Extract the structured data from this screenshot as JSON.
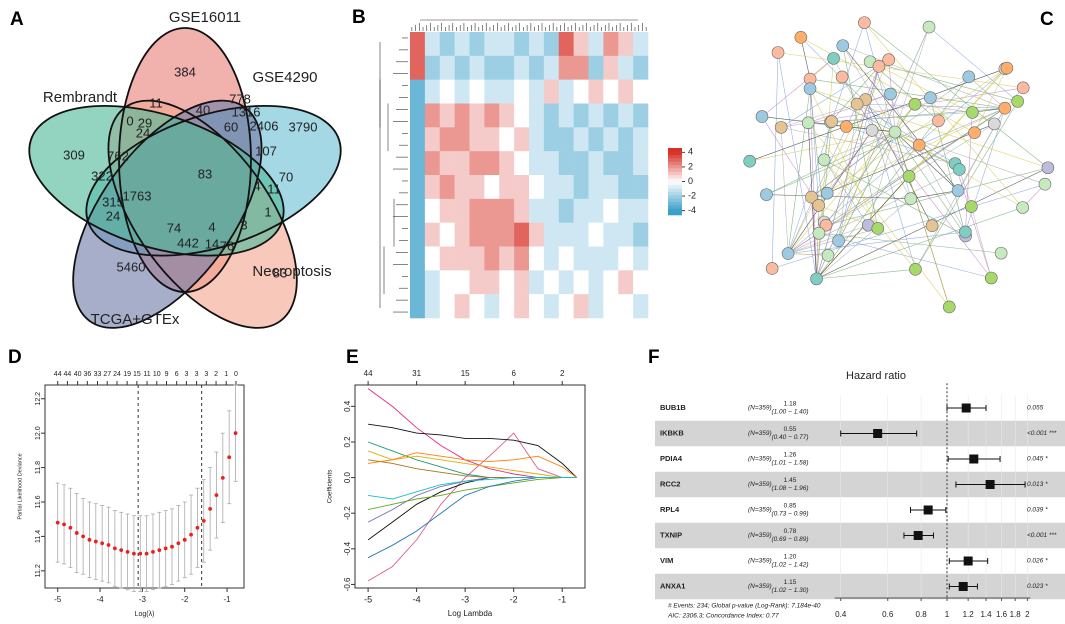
{
  "panel_labels": [
    "A",
    "B",
    "C",
    "D",
    "E",
    "F"
  ],
  "chart_data": [
    {
      "type": "venn",
      "sets": [
        {
          "name": "GSE16011",
          "color": "#e8837d"
        },
        {
          "name": "GSE4290",
          "color": "#6cc0d5"
        },
        {
          "name": "Necroptosis",
          "color": "#f3a690"
        },
        {
          "name": "TCGA+GTEx",
          "color": "#717ca9"
        },
        {
          "name": "Rembrandt",
          "color": "#4fb99a"
        }
      ],
      "values": [
        384,
        11,
        778,
        40,
        1316,
        29,
        0,
        24,
        60,
        2406,
        3790,
        309,
        762,
        107,
        322,
        83,
        70,
        1763,
        4,
        11,
        315,
        24,
        74,
        4,
        3,
        1,
        83,
        442,
        14,
        76,
        5460
      ]
    },
    {
      "type": "heatmap",
      "values": [
        [
          3,
          -1,
          -2,
          -1,
          -2,
          -1,
          -1,
          -2,
          -1,
          -2,
          3,
          1,
          -1,
          2,
          1,
          -1
        ],
        [
          3,
          -2,
          -1,
          -2,
          -1,
          -2,
          -2,
          -1,
          -2,
          -1,
          2,
          2,
          -2,
          1,
          -1,
          -2
        ],
        [
          -3,
          -1,
          0,
          -1,
          0,
          -1,
          -1,
          0,
          -1,
          1,
          -1,
          0,
          1,
          0,
          1,
          0
        ],
        [
          -3,
          2,
          1,
          2,
          1,
          2,
          1,
          0,
          -1,
          -2,
          -1,
          -2,
          -1,
          -2,
          -1,
          -2
        ],
        [
          -3,
          1,
          2,
          2,
          1,
          1,
          0,
          1,
          -1,
          -2,
          -2,
          -1,
          -2,
          -1,
          -2,
          -1
        ],
        [
          -3,
          2,
          1,
          1,
          2,
          2,
          1,
          0,
          -1,
          -1,
          -2,
          -2,
          -1,
          -2,
          -2,
          -1
        ],
        [
          -3,
          1,
          2,
          1,
          1,
          0,
          1,
          1,
          0,
          -1,
          -1,
          -2,
          -1,
          -1,
          -2,
          -2
        ],
        [
          -3,
          0,
          1,
          1,
          2,
          2,
          2,
          1,
          -1,
          -1,
          -2,
          -1,
          -1,
          0,
          -1,
          -1
        ],
        [
          -3,
          1,
          0,
          1,
          2,
          2,
          2,
          3,
          1,
          -1,
          -1,
          -1,
          0,
          -1,
          -1,
          -2
        ],
        [
          -3,
          0,
          1,
          1,
          1,
          2,
          1,
          2,
          0,
          -1,
          0,
          -1,
          -1,
          -1,
          0,
          -1
        ],
        [
          -3,
          -1,
          0,
          0,
          1,
          1,
          0,
          1,
          -1,
          0,
          -1,
          0,
          -1,
          0,
          1,
          0
        ],
        [
          -3,
          -1,
          0,
          1,
          0,
          -1,
          0,
          1,
          0,
          -1,
          0,
          1,
          -1,
          0,
          0,
          -1
        ]
      ],
      "color_low": "#3a9fc9",
      "color_mid": "#ffffff",
      "color_high": "#d73027",
      "colorbar_lim": [
        -4.6,
        4.6
      ],
      "colorbar_ticks": [
        4,
        2,
        0,
        -2,
        -4
      ]
    },
    {
      "type": "errorbar",
      "x_label": "Log(λ)",
      "y_label": "Partial Likelihood Deviance",
      "color": "#e8221c",
      "x": [
        -5.0,
        -4.85,
        -4.7,
        -4.55,
        -4.4,
        -4.25,
        -4.1,
        -3.95,
        -3.8,
        -3.65,
        -3.5,
        -3.35,
        -3.2,
        -3.05,
        -2.9,
        -2.75,
        -2.6,
        -2.45,
        -2.3,
        -2.15,
        -2.0,
        -1.85,
        -1.7,
        -1.55,
        -1.4,
        -1.25,
        -1.1,
        -0.95,
        -0.8
      ],
      "values": [
        11.48,
        11.47,
        11.45,
        11.42,
        11.4,
        11.38,
        11.37,
        11.36,
        11.35,
        11.33,
        11.32,
        11.31,
        11.3,
        11.3,
        11.3,
        11.31,
        11.32,
        11.33,
        11.34,
        11.36,
        11.38,
        11.41,
        11.45,
        11.49,
        11.56,
        11.64,
        11.74,
        11.86,
        12.0
      ],
      "errors": [
        0.23,
        0.23,
        0.23,
        0.23,
        0.22,
        0.22,
        0.22,
        0.22,
        0.22,
        0.22,
        0.22,
        0.22,
        0.22,
        0.22,
        0.22,
        0.22,
        0.22,
        0.22,
        0.22,
        0.22,
        0.22,
        0.23,
        0.23,
        0.24,
        0.24,
        0.25,
        0.26,
        0.27,
        0.28
      ],
      "vlines": [
        -3.1,
        -1.6
      ],
      "xlim": [
        -5.3,
        -0.6
      ],
      "ylim": [
        11.1,
        12.28
      ],
      "xticks": [
        -5,
        -4,
        -3,
        -2,
        -1
      ],
      "yticks": [
        11.2,
        11.4,
        11.6,
        11.8,
        {
          "value": 12,
          "label": "12.0"
        },
        12.2
      ],
      "top_ticks": [
        {
          "value": -5,
          "label": "44"
        },
        {
          "value": -4.77,
          "label": "44"
        },
        {
          "value": -4.53,
          "label": "40"
        },
        {
          "value": -4.3,
          "label": "36"
        },
        {
          "value": -4.06,
          "label": "33"
        },
        {
          "value": -3.83,
          "label": "27"
        },
        {
          "value": -3.6,
          "label": "24"
        },
        {
          "value": -3.36,
          "label": "19"
        },
        {
          "value": -3.13,
          "label": "15"
        },
        {
          "value": -2.89,
          "label": "11"
        },
        {
          "value": -2.66,
          "label": "10"
        },
        {
          "value": -2.43,
          "label": "9"
        },
        {
          "value": -2.19,
          "label": "6"
        },
        {
          "value": -1.96,
          "label": "3"
        },
        {
          "value": -1.72,
          "label": "3"
        },
        {
          "value": -1.49,
          "label": "3"
        },
        {
          "value": -1.26,
          "label": "2"
        },
        {
          "value": -1.02,
          "label": "1"
        },
        {
          "value": -0.79,
          "label": "0"
        }
      ]
    },
    {
      "type": "line",
      "x_label": "Log Lambda",
      "y_label": "Coefficients",
      "x": [
        -5,
        -4.5,
        -4,
        -3.5,
        -3,
        -2.5,
        -2,
        -1.5,
        -1,
        -0.7
      ],
      "series": [
        {
          "color": "#e7298a",
          "values": [
            0.5,
            0.4,
            0.28,
            0.18,
            0.1,
            0.05,
            0.02,
            0,
            0,
            0
          ]
        },
        {
          "color": "#d9608f",
          "values": [
            -0.58,
            -0.5,
            -0.35,
            -0.15,
            0.0,
            0.12,
            0.25,
            0.05,
            0,
            0
          ]
        },
        {
          "color": "#111111",
          "values": [
            0.3,
            0.28,
            0.25,
            0.24,
            0.22,
            0.22,
            0.21,
            0.18,
            0.08,
            0
          ]
        },
        {
          "color": "#111111",
          "values": [
            -0.35,
            -0.25,
            -0.15,
            -0.08,
            -0.03,
            0,
            0,
            0,
            0,
            0
          ]
        },
        {
          "color": "#1b9e77",
          "values": [
            0.2,
            0.15,
            0.1,
            0.06,
            0.02,
            0,
            0,
            0,
            0,
            0
          ]
        },
        {
          "color": "#7570b3",
          "values": [
            -0.25,
            -0.18,
            -0.1,
            -0.05,
            -0.02,
            0,
            0,
            0,
            0,
            0
          ]
        },
        {
          "color": "#e6ab02",
          "values": [
            0.15,
            0.1,
            0.12,
            0.1,
            0.08,
            0.06,
            0.04,
            0.02,
            0,
            0
          ]
        },
        {
          "color": "#66a61e",
          "values": [
            -0.18,
            -0.15,
            -0.12,
            -0.1,
            -0.07,
            -0.05,
            -0.03,
            -0.01,
            0,
            0
          ]
        },
        {
          "color": "#a6761d",
          "values": [
            0.1,
            0.08,
            0.05,
            0.03,
            0.01,
            0,
            0,
            0,
            0,
            0
          ]
        },
        {
          "color": "#1f78b4",
          "values": [
            -0.45,
            -0.38,
            -0.3,
            -0.2,
            -0.1,
            -0.05,
            -0.02,
            0,
            0,
            0
          ]
        },
        {
          "color": "#ff7f00",
          "values": [
            0.08,
            0.1,
            0.14,
            0.12,
            0.1,
            0.09,
            0.1,
            0.12,
            0.06,
            0
          ]
        },
        {
          "color": "#17becf",
          "values": [
            -0.1,
            -0.12,
            -0.08,
            -0.04,
            -0.02,
            -0.01,
            0,
            0,
            0,
            0
          ]
        }
      ],
      "xlim": [
        -5.27,
        -0.53
      ],
      "ylim": [
        -0.62,
        0.52
      ],
      "xticks": [
        -5,
        -4,
        -3,
        -2,
        -1
      ],
      "yticks": [
        -0.6,
        -0.4,
        -0.2,
        {
          "value": 0,
          "label": "0.0"
        },
        0.2,
        0.4
      ],
      "top_ticks": [
        {
          "value": -5,
          "label": "44"
        },
        {
          "value": -4,
          "label": "31"
        },
        {
          "value": -3,
          "label": "15"
        },
        {
          "value": -2,
          "label": "6"
        },
        {
          "value": -1,
          "label": "2"
        }
      ]
    },
    {
      "type": "forest",
      "title": "Hazard ratio",
      "genes": [
        "BUB1B",
        "IKBKB",
        "PDIA4",
        "RCC2",
        "RPL4",
        "TXNIP",
        "VIM",
        "ANXA1"
      ],
      "n_labels": [
        "(N=359)",
        "(N=359)",
        "(N=359)",
        "(N=359)",
        "(N=359)",
        "(N=359)",
        "(N=359)",
        "(N=359)"
      ],
      "hr": [
        1.18,
        0.55,
        1.26,
        1.45,
        0.85,
        0.78,
        1.2,
        1.15
      ],
      "hr_labels": [
        "1.18",
        "0.55",
        "1.26",
        "1.45",
        "0.85",
        "0.78",
        "1.20",
        "1.15"
      ],
      "lower": [
        1.0,
        0.4,
        1.01,
        1.08,
        0.73,
        0.69,
        1.02,
        1.02
      ],
      "upper": [
        1.4,
        0.77,
        1.58,
        1.96,
        0.99,
        0.89,
        1.42,
        1.3
      ],
      "ci_labels": [
        "(1.00 − 1.40)",
        "(0.40 − 0.77)",
        "(1.01 − 1.58)",
        "(1.08 − 1.96)",
        "(0.73 − 0.99)",
        "(0.69 − 0.89)",
        "(1.02 − 1.42)",
        "(1.02 − 1.30)"
      ],
      "p_labels": [
        "0.055",
        "<0.001 ***",
        "0.045 *",
        "0.013 *",
        "0.039 *",
        "<0.001 ***",
        "0.026 *",
        "0.023 *"
      ],
      "footnotes": [
        "# Events: 234; Global p-value (Log-Rank): 7.184e-40",
        "AIC: 2306.3; Concordance Index: 0.77"
      ],
      "log_scale": true,
      "reference_line": 1,
      "xlim": [
        0.38,
        2.05
      ],
      "xticks": [
        0.4,
        0.6,
        0.8,
        1,
        1.2,
        1.4,
        1.6,
        1.8,
        2
      ]
    }
  ]
}
